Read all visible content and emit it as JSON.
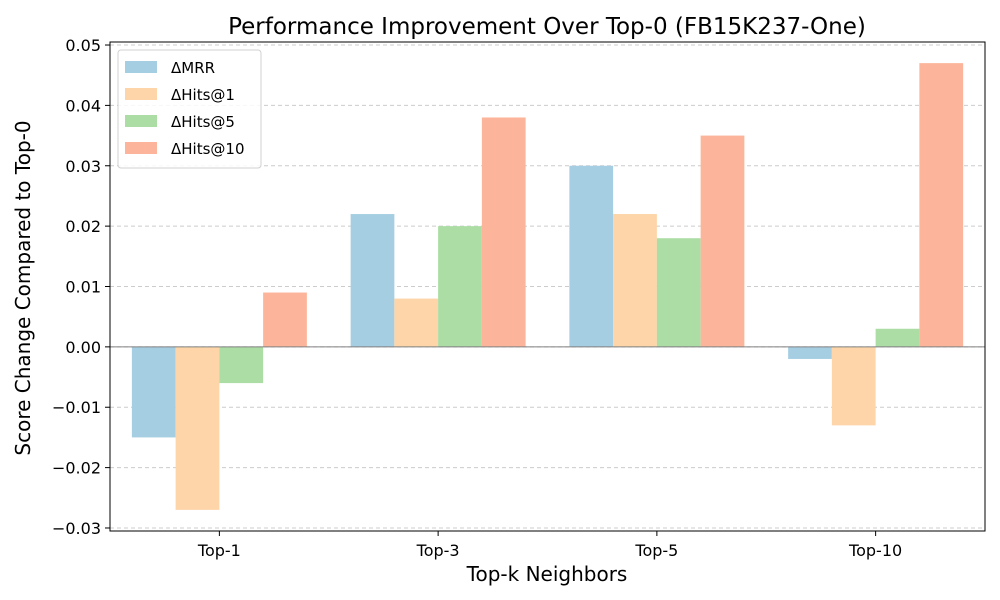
{
  "chart_data": {
    "type": "bar",
    "title": "Performance Improvement Over Top-0 (FB15K237-One)",
    "xlabel": "Top-k Neighbors",
    "ylabel": "Score Change Compared to Top-0",
    "categories": [
      "Top-1",
      "Top-3",
      "Top-5",
      "Top-10"
    ],
    "series": [
      {
        "name": "ΔMRR",
        "color": "#a6cee3",
        "values": [
          -0.015,
          0.022,
          0.03,
          -0.002
        ]
      },
      {
        "name": "ΔHits@1",
        "color": "#fdd5a8",
        "values": [
          -0.027,
          0.008,
          0.022,
          -0.013
        ]
      },
      {
        "name": "ΔHits@5",
        "color": "#abdda4",
        "values": [
          -0.006,
          0.02,
          0.018,
          0.003
        ]
      },
      {
        "name": "ΔHits@10",
        "color": "#fcb59a",
        "values": [
          0.009,
          0.038,
          0.035,
          0.047
        ]
      }
    ],
    "ylim": [
      -0.0305,
      0.0505
    ],
    "yticks": [
      -0.03,
      -0.02,
      -0.01,
      0.0,
      0.01,
      0.02,
      0.03,
      0.04,
      0.05
    ],
    "ytick_labels": [
      "−0.03",
      "−0.02",
      "−0.01",
      "0.00",
      "0.01",
      "0.02",
      "0.03",
      "0.04",
      "0.05"
    ],
    "grid": "y-dashed",
    "legend_position": "top-left"
  }
}
